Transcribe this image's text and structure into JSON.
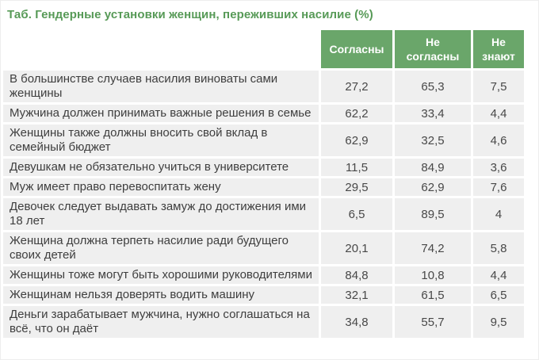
{
  "title": "Таб. Гендерные установки женщин, переживших насилие (%)",
  "table": {
    "columns": [
      "Согласны",
      "Не согласны",
      "Не знают"
    ],
    "rows": [
      {
        "statement": "В большинстве случаев насилия виноваты сами женщины",
        "agree": "27,2",
        "disagree": "65,3",
        "unknown": "7,5"
      },
      {
        "statement": "Мужчина должен принимать важные решения в семье",
        "agree": "62,2",
        "disagree": "33,4",
        "unknown": "4,4"
      },
      {
        "statement": "Женщины также должны вносить свой вклад в семейный бюджет",
        "agree": "62,9",
        "disagree": "32,5",
        "unknown": "4,6"
      },
      {
        "statement": "Девушкам не обязательно учиться в университете",
        "agree": "11,5",
        "disagree": "84,9",
        "unknown": "3,6"
      },
      {
        "statement": "Муж имеет право перевоспитать жену",
        "agree": "29,5",
        "disagree": "62,9",
        "unknown": "7,6"
      },
      {
        "statement": "Девочек следует выдавать замуж до достижения ими 18 лет",
        "agree": "6,5",
        "disagree": "89,5",
        "unknown": "4"
      },
      {
        "statement": "Женщина должна терпеть насилие ради будущего своих детей",
        "agree": "20,1",
        "disagree": "74,2",
        "unknown": "5,8"
      },
      {
        "statement": "Женщины тоже могут быть хорошими руководителями",
        "agree": "84,8",
        "disagree": "10,8",
        "unknown": "4,4"
      },
      {
        "statement": "Женщинам нельзя доверять водить машину",
        "agree": "32,1",
        "disagree": "61,5",
        "unknown": "6,5"
      },
      {
        "statement": "Деньги зарабатывает мужчина, нужно соглашаться на всё, что он даёт",
        "agree": "34,8",
        "disagree": "55,7",
        "unknown": "9,5"
      }
    ]
  },
  "colors": {
    "header_bg": "#6aa66a",
    "title_text": "#579a57",
    "cell_bg": "#efefef",
    "body_text": "#3e3e3e"
  },
  "chart_data": {
    "type": "table",
    "title": "Таб. Гендерные установки женщин, переживших насилие (%)",
    "columns": [
      "Согласны",
      "Не согласны",
      "Не знают"
    ],
    "rows": [
      {
        "statement": "В большинстве случаев насилия виноваты сами женщины",
        "values": [
          27.2,
          65.3,
          7.5
        ]
      },
      {
        "statement": "Мужчина должен принимать важные решения в семье",
        "values": [
          62.2,
          33.4,
          4.4
        ]
      },
      {
        "statement": "Женщины также должны вносить свой вклад в семейный бюджет",
        "values": [
          62.9,
          32.5,
          4.6
        ]
      },
      {
        "statement": "Девушкам не обязательно учиться в университете",
        "values": [
          11.5,
          84.9,
          3.6
        ]
      },
      {
        "statement": "Муж имеет право перевоспитать жену",
        "values": [
          29.5,
          62.9,
          7.6
        ]
      },
      {
        "statement": "Девочек следует выдавать замуж до достижения ими 18 лет",
        "values": [
          6.5,
          89.5,
          4
        ]
      },
      {
        "statement": "Женщина должна терпеть насилие ради будущего своих детей",
        "values": [
          20.1,
          74.2,
          5.8
        ]
      },
      {
        "statement": "Женщины тоже могут быть хорошими руководителями",
        "values": [
          84.8,
          10.8,
          4.4
        ]
      },
      {
        "statement": "Женщинам нельзя доверять водить машину",
        "values": [
          32.1,
          61.5,
          6.5
        ]
      },
      {
        "statement": "Деньги зарабатывает мужчина, нужно соглашаться на всё, что он даёт",
        "values": [
          34.8,
          55.7,
          9.5
        ]
      }
    ],
    "notes": "values are percentages; decimal comma used in display"
  }
}
